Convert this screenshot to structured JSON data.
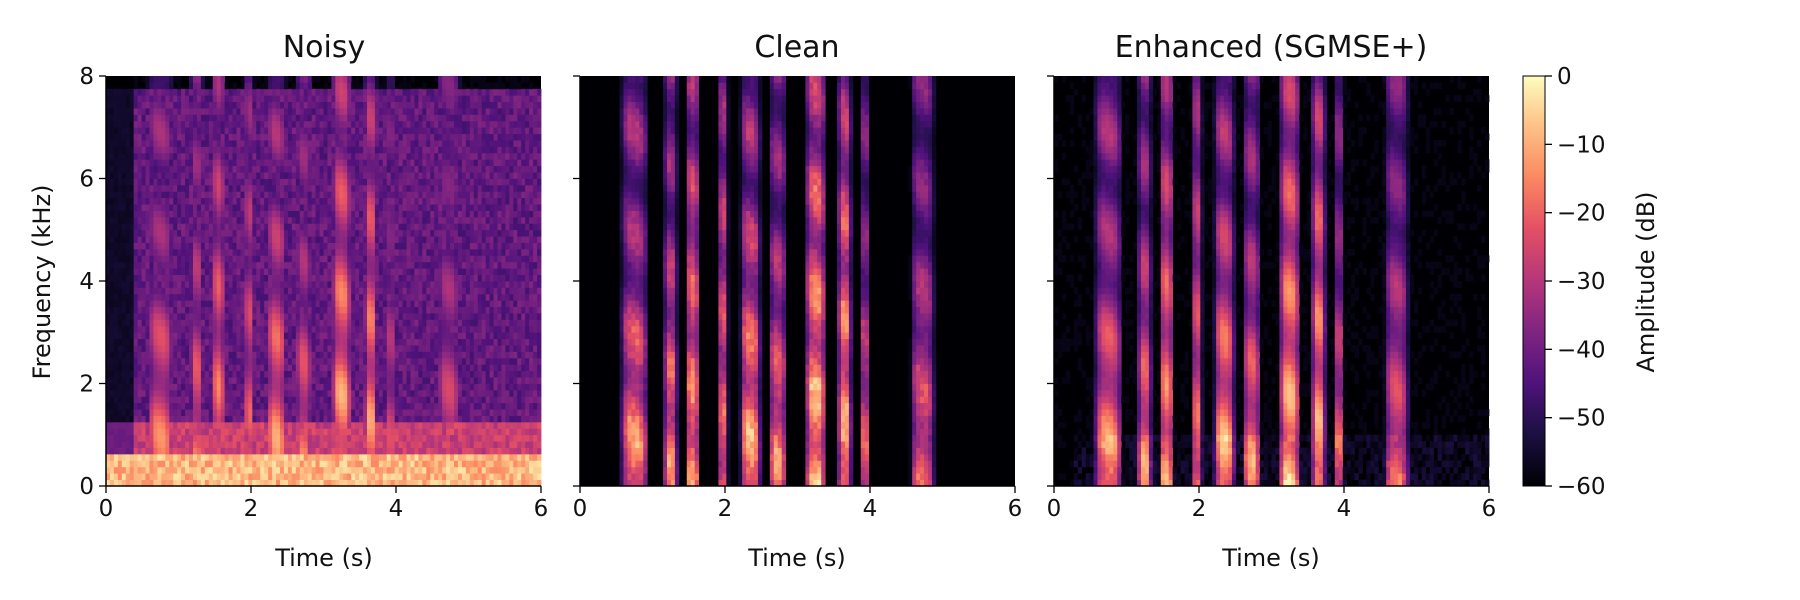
{
  "chart_data": {
    "type": "heatmap",
    "panels": [
      {
        "id": "noisy",
        "title": "Noisy",
        "xlabel": "Time (s)",
        "ylabel": "Frequency (kHz)",
        "xlim": [
          0,
          6
        ],
        "ylim": [
          0,
          8
        ],
        "xticks": [
          0,
          2,
          4,
          6
        ],
        "yticks": [
          0,
          2,
          4,
          6,
          8
        ],
        "show_ytick_labels": true
      },
      {
        "id": "clean",
        "title": "Clean",
        "xlabel": "Time (s)",
        "ylabel": "",
        "xlim": [
          0,
          6
        ],
        "ylim": [
          0,
          8
        ],
        "xticks": [
          0,
          2,
          4,
          6
        ],
        "yticks": [
          0,
          2,
          4,
          6,
          8
        ],
        "show_ytick_labels": false
      },
      {
        "id": "enhanced",
        "title": "Enhanced (SGMSE+)",
        "xlabel": "Time (s)",
        "ylabel": "",
        "xlim": [
          0,
          6
        ],
        "ylim": [
          0,
          8
        ],
        "xticks": [
          0,
          2,
          4,
          6
        ],
        "yticks": [
          0,
          2,
          4,
          6,
          8
        ],
        "show_ytick_labels": false
      }
    ],
    "colorbar": {
      "label": "Amplitude (dB)",
      "range": [
        -60,
        0
      ],
      "ticks": [
        0,
        -10,
        -20,
        -30,
        -40,
        -50,
        -60
      ],
      "colormap": "magma"
    },
    "speech_segments": [
      {
        "start": 0.55,
        "end": 0.95,
        "max_khz": 4.2,
        "strength": 0.85
      },
      {
        "start": 1.15,
        "end": 1.35,
        "max_khz": 5.0,
        "strength": 0.8
      },
      {
        "start": 1.45,
        "end": 1.65,
        "max_khz": 7.5,
        "strength": 0.85
      },
      {
        "start": 1.9,
        "end": 2.05,
        "max_khz": 7.6,
        "strength": 0.75
      },
      {
        "start": 2.2,
        "end": 2.5,
        "max_khz": 5.2,
        "strength": 0.9
      },
      {
        "start": 2.6,
        "end": 2.85,
        "max_khz": 4.6,
        "strength": 0.8
      },
      {
        "start": 3.1,
        "end": 3.4,
        "max_khz": 7.8,
        "strength": 0.95
      },
      {
        "start": 3.55,
        "end": 3.75,
        "max_khz": 7.9,
        "strength": 0.9
      },
      {
        "start": 3.85,
        "end": 4.0,
        "max_khz": 4.5,
        "strength": 0.7
      },
      {
        "start": 4.55,
        "end": 4.9,
        "max_khz": 5.0,
        "strength": 0.7
      }
    ]
  },
  "colors": {
    "background": "#ffffff",
    "axis": "#000000",
    "text": "#111111"
  }
}
